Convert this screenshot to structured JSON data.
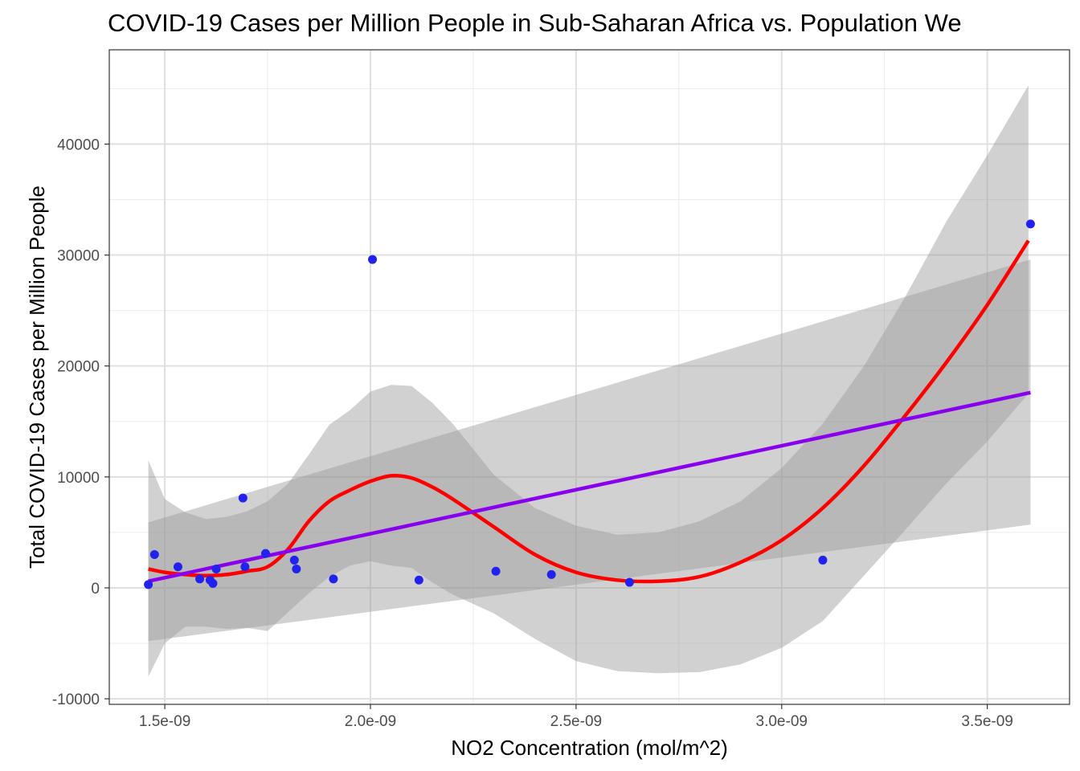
{
  "chart_data": {
    "type": "scatter",
    "title": "COVID-19 Cases per Million People in Sub-Saharan Africa vs. Population We",
    "xlabel": "NO2 Concentration (mol/m^2)",
    "ylabel": "Total COVID-19 Cases per Million People",
    "xlim": [
      1.365e-09,
      3.7e-09
    ],
    "ylim": [
      -10500,
      48500
    ],
    "x_ticks": [
      1.5e-09,
      2e-09,
      2.5e-09,
      3e-09,
      3.5e-09
    ],
    "x_tick_labels": [
      "1.5e-09",
      "2.0e-09",
      "2.5e-09",
      "3.0e-09",
      "3.5e-09"
    ],
    "y_ticks": [
      -10000,
      0,
      10000,
      20000,
      30000,
      40000
    ],
    "y_tick_labels": [
      "-10000",
      "0",
      "10000",
      "20000",
      "30000",
      "40000"
    ],
    "grid": true,
    "colors": {
      "points": "#2222ee",
      "loess": "#ff0000",
      "linear": "#8800ee",
      "band": "#999999"
    },
    "series": [
      {
        "kind": "points",
        "x": [
          1.46e-09,
          1.475e-09,
          1.532e-09,
          1.585e-09,
          1.61e-09,
          1.617e-09,
          1.625e-09,
          1.69e-09,
          1.695e-09,
          1.745e-09,
          1.815e-09,
          1.82e-09,
          1.91e-09,
          2.005e-09,
          2.118e-09,
          2.305e-09,
          2.44e-09,
          2.63e-09,
          3.1e-09,
          3.605e-09
        ],
        "y": [
          300,
          3000,
          1900,
          800,
          700,
          400,
          1700,
          8100,
          1900,
          3100,
          2500,
          1700,
          800,
          29600,
          700,
          1500,
          1200,
          500,
          2500,
          32800
        ]
      },
      {
        "kind": "loess",
        "x": [
          1.46e-09,
          1.5e-09,
          1.55e-09,
          1.6e-09,
          1.65e-09,
          1.7e-09,
          1.75e-09,
          1.8e-09,
          1.85e-09,
          1.9e-09,
          1.95e-09,
          2e-09,
          2.05e-09,
          2.1e-09,
          2.15e-09,
          2.2e-09,
          2.3e-09,
          2.4e-09,
          2.5e-09,
          2.6e-09,
          2.7e-09,
          2.8e-09,
          2.9e-09,
          3e-09,
          3.1e-09,
          3.2e-09,
          3.3e-09,
          3.4e-09,
          3.5e-09,
          3.6e-09
        ],
        "y": [
          1700,
          1400,
          1200,
          1100,
          1200,
          1500,
          1900,
          3500,
          6000,
          7800,
          8800,
          9600,
          10100,
          9900,
          9100,
          8000,
          5500,
          3000,
          1400,
          700,
          600,
          1000,
          2300,
          4300,
          7200,
          11000,
          15500,
          20300,
          25500,
          31300
        ]
      },
      {
        "kind": "loess_band",
        "x": [
          1.46e-09,
          1.5e-09,
          1.55e-09,
          1.6e-09,
          1.65e-09,
          1.7e-09,
          1.75e-09,
          1.8e-09,
          1.85e-09,
          1.9e-09,
          1.95e-09,
          2e-09,
          2.05e-09,
          2.1e-09,
          2.15e-09,
          2.2e-09,
          2.3e-09,
          2.4e-09,
          2.5e-09,
          2.6e-09,
          2.7e-09,
          2.8e-09,
          2.9e-09,
          3e-09,
          3.1e-09,
          3.2e-09,
          3.3e-09,
          3.4e-09,
          3.5e-09,
          3.6e-09
        ],
        "upper": [
          11500,
          8000,
          6800,
          6200,
          6400,
          6900,
          7800,
          9400,
          12000,
          14700,
          16000,
          17700,
          18300,
          18200,
          16700,
          14800,
          10200,
          7200,
          5600,
          4800,
          5000,
          6000,
          7800,
          10800,
          14800,
          20000,
          26200,
          33000,
          39000,
          45300
        ],
        "lower": [
          -8000,
          -5000,
          -3500,
          -3500,
          -3700,
          -3600,
          -3900,
          -2200,
          -500,
          1000,
          2000,
          2400,
          2000,
          1800,
          500,
          -600,
          -2300,
          -4600,
          -6600,
          -7500,
          -7700,
          -7600,
          -6900,
          -5400,
          -3000,
          1100,
          5200,
          9400,
          13200,
          17500
        ]
      },
      {
        "kind": "linear",
        "x": [
          1.46e-09,
          3.605e-09
        ],
        "y": [
          600,
          17600
        ]
      },
      {
        "kind": "linear_band",
        "x": [
          1.46e-09,
          3.605e-09
        ],
        "upper": [
          5900,
          29600
        ],
        "lower": [
          -4800,
          5700
        ]
      }
    ]
  }
}
